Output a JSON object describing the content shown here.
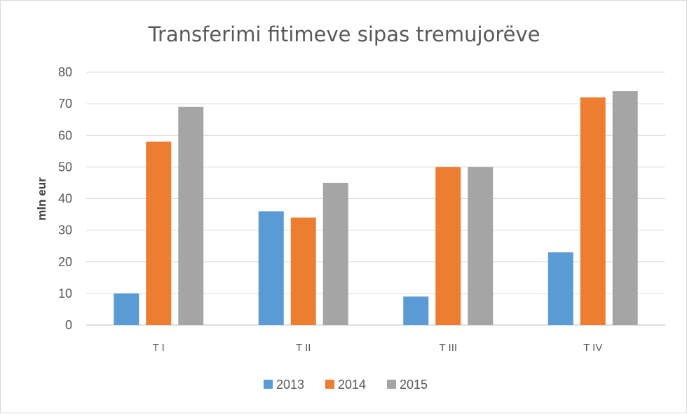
{
  "chart_data": {
    "type": "bar",
    "title": "Transferimi fitimeve sipas tremujorëve",
    "xlabel": "",
    "ylabel": "mln eur",
    "ylim": [
      0,
      80
    ],
    "yticks": [
      0,
      10,
      20,
      30,
      40,
      50,
      60,
      70,
      80
    ],
    "categories": [
      "T I",
      "T II",
      "T III",
      "T IV"
    ],
    "series": [
      {
        "name": "2013",
        "color": "#5b9bd5",
        "values": [
          10,
          36,
          9,
          23
        ]
      },
      {
        "name": "2014",
        "color": "#ed7d31",
        "values": [
          58,
          34,
          50,
          72
        ]
      },
      {
        "name": "2015",
        "color": "#a5a5a5",
        "values": [
          69,
          45,
          50,
          74
        ]
      }
    ],
    "grid": true,
    "legend_position": "bottom"
  }
}
